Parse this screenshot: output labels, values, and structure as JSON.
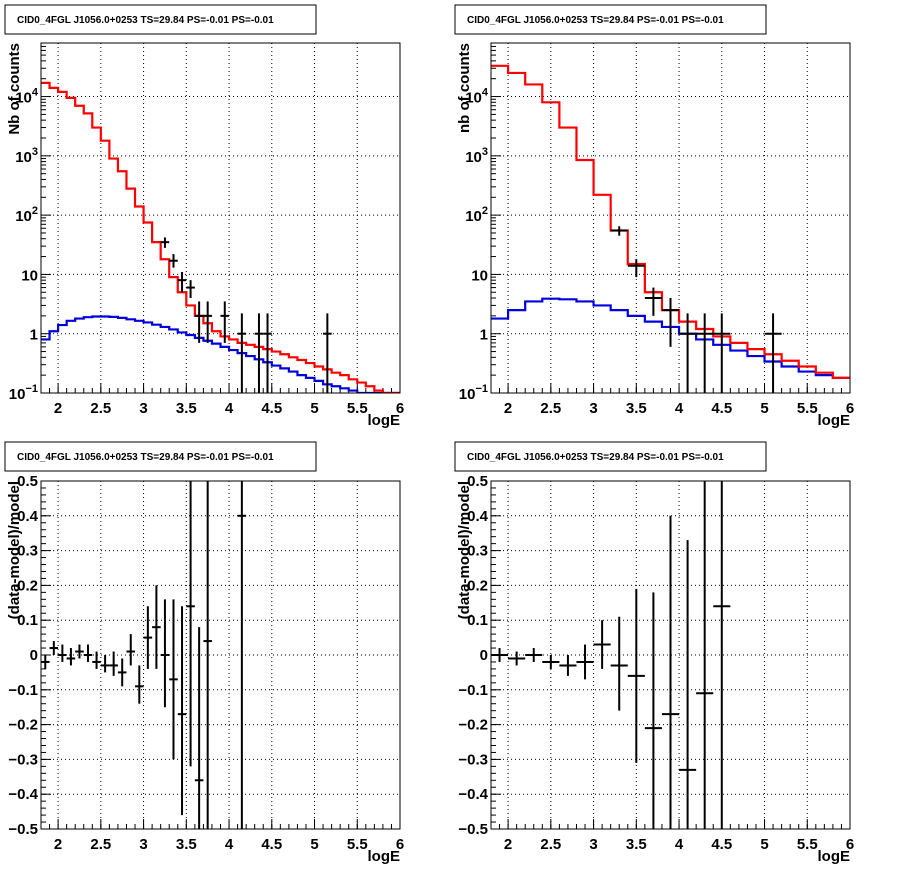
{
  "chart_data": [
    {
      "id": "top-left",
      "type": "line",
      "title": "CID0_4FGL J1056.0+0253 TS=29.84 PS=-0.01 PS=-0.01",
      "xlabel": "logE",
      "ylabel": "Nb of counts",
      "yscale": "log",
      "xlim": [
        1.8,
        6.0
      ],
      "ylim": [
        0.1,
        80000
      ],
      "grid": true,
      "x_ticks": [
        "2",
        "2.5",
        "3",
        "3.5",
        "4",
        "4.5",
        "5",
        "5.5",
        "6"
      ],
      "y_ticks": [
        {
          "v": 0.1,
          "base": "10",
          "exp": "−1"
        },
        {
          "v": 1,
          "base": "1",
          "exp": ""
        },
        {
          "v": 10,
          "base": "10",
          "exp": ""
        },
        {
          "v": 100,
          "base": "10",
          "exp": "2"
        },
        {
          "v": 1000,
          "base": "10",
          "exp": "3"
        },
        {
          "v": 10000,
          "base": "10",
          "exp": "4"
        }
      ],
      "bin_width": 0.1,
      "model_total": {
        "color": "#ff0000",
        "edges": [
          1.8,
          1.9,
          2.0,
          2.1,
          2.2,
          2.3,
          2.4,
          2.5,
          2.6,
          2.7,
          2.8,
          2.9,
          3.0,
          3.1,
          3.2,
          3.3,
          3.4,
          3.5,
          3.6,
          3.7,
          3.8,
          3.9,
          4.0,
          4.1,
          4.2,
          4.3,
          4.4,
          4.5,
          4.6,
          4.7,
          4.8,
          4.9,
          5.0,
          5.1,
          5.2,
          5.3,
          5.4,
          5.5,
          5.6,
          5.7,
          5.8,
          5.9,
          6.0
        ],
        "values": [
          17000,
          14000,
          12000,
          9500,
          7000,
          5200,
          3000,
          1800,
          900,
          550,
          280,
          140,
          75,
          35,
          18,
          9,
          5,
          3,
          2,
          1.5,
          1.1,
          0.9,
          0.8,
          0.7,
          0.65,
          0.6,
          0.55,
          0.5,
          0.45,
          0.4,
          0.36,
          0.32,
          0.28,
          0.25,
          0.22,
          0.2,
          0.17,
          0.15,
          0.13,
          0.11,
          0.1,
          0.09
        ]
      },
      "model_source": {
        "color": "#0000dd",
        "edges": [
          1.8,
          1.9,
          2.0,
          2.1,
          2.2,
          2.3,
          2.4,
          2.5,
          2.6,
          2.7,
          2.8,
          2.9,
          3.0,
          3.1,
          3.2,
          3.3,
          3.4,
          3.5,
          3.6,
          3.7,
          3.8,
          3.9,
          4.0,
          4.1,
          4.2,
          4.3,
          4.4,
          4.5,
          4.6,
          4.7,
          4.8,
          4.9,
          5.0,
          5.1,
          5.2,
          5.3,
          5.4,
          5.5,
          5.6,
          5.7,
          5.8,
          5.9,
          6.0
        ],
        "values": [
          0.8,
          1.1,
          1.4,
          1.65,
          1.8,
          1.9,
          1.95,
          1.95,
          1.92,
          1.85,
          1.75,
          1.65,
          1.55,
          1.42,
          1.3,
          1.18,
          1.05,
          0.95,
          0.85,
          0.76,
          0.68,
          0.6,
          0.53,
          0.47,
          0.42,
          0.37,
          0.33,
          0.29,
          0.26,
          0.23,
          0.2,
          0.18,
          0.16,
          0.14,
          0.13,
          0.12,
          0.11,
          0.1,
          0.1,
          0.1,
          0.1,
          0.09
        ]
      },
      "data_points": [
        {
          "x": 3.25,
          "y": 35,
          "lo": 28,
          "hi": 42
        },
        {
          "x": 3.35,
          "y": 17,
          "lo": 13,
          "hi": 22
        },
        {
          "x": 3.45,
          "y": 8,
          "lo": 5,
          "hi": 11
        },
        {
          "x": 3.55,
          "y": 6,
          "lo": 4,
          "hi": 8
        },
        {
          "x": 3.65,
          "y": 2,
          "lo": 0.7,
          "hi": 3.5
        },
        {
          "x": 3.75,
          "y": 2,
          "lo": 0.7,
          "hi": 3.5
        },
        {
          "x": 3.95,
          "y": 2,
          "lo": 0.7,
          "hi": 3.5
        },
        {
          "x": 4.15,
          "y": 1,
          "lo": 0.1,
          "hi": 2.2
        },
        {
          "x": 4.35,
          "y": 1,
          "lo": 0.1,
          "hi": 2.2
        },
        {
          "x": 4.45,
          "y": 1,
          "lo": 0.1,
          "hi": 2.2
        },
        {
          "x": 5.15,
          "y": 1,
          "lo": 0.1,
          "hi": 2.2
        }
      ]
    },
    {
      "id": "top-right",
      "type": "line",
      "title": "CID0_4FGL J1056.0+0253 TS=29.84 PS=-0.01 PS=-0.01",
      "xlabel": "logE",
      "ylabel": "nb of counts",
      "yscale": "log",
      "xlim": [
        1.8,
        6.0
      ],
      "ylim": [
        0.1,
        80000
      ],
      "grid": true,
      "x_ticks": [
        "2",
        "2.5",
        "3",
        "3.5",
        "4",
        "4.5",
        "5",
        "5.5",
        "6"
      ],
      "y_ticks": [
        {
          "v": 0.1,
          "base": "10",
          "exp": "−1"
        },
        {
          "v": 1,
          "base": "1",
          "exp": ""
        },
        {
          "v": 10,
          "base": "10",
          "exp": ""
        },
        {
          "v": 100,
          "base": "10",
          "exp": "2"
        },
        {
          "v": 1000,
          "base": "10",
          "exp": "3"
        },
        {
          "v": 10000,
          "base": "10",
          "exp": "4"
        }
      ],
      "bin_width": 0.2,
      "model_total": {
        "color": "#ff0000",
        "edges": [
          1.8,
          2.0,
          2.2,
          2.4,
          2.6,
          2.8,
          3.0,
          3.2,
          3.4,
          3.6,
          3.8,
          4.0,
          4.2,
          4.4,
          4.6,
          4.8,
          5.0,
          5.2,
          5.4,
          5.6,
          5.8,
          6.0
        ],
        "values": [
          33000,
          25000,
          16000,
          8000,
          3000,
          850,
          220,
          55,
          15,
          5,
          2.5,
          1.6,
          1.2,
          0.9,
          0.7,
          0.55,
          0.45,
          0.35,
          0.28,
          0.22,
          0.18
        ]
      },
      "model_source": {
        "color": "#0000dd",
        "edges": [
          1.8,
          2.0,
          2.2,
          2.4,
          2.6,
          2.8,
          3.0,
          3.2,
          3.4,
          3.6,
          3.8,
          4.0,
          4.2,
          4.4,
          4.6,
          4.8,
          5.0,
          5.2,
          5.4,
          5.6,
          5.8,
          6.0
        ],
        "values": [
          1.8,
          2.5,
          3.5,
          3.9,
          3.8,
          3.5,
          3.0,
          2.5,
          2.0,
          1.6,
          1.3,
          1.0,
          0.8,
          0.65,
          0.52,
          0.42,
          0.34,
          0.28,
          0.23,
          0.2,
          0.18
        ]
      },
      "data_points": [
        {
          "x": 3.3,
          "y": 55,
          "lo": 45,
          "hi": 65
        },
        {
          "x": 3.5,
          "y": 14,
          "lo": 9,
          "hi": 18
        },
        {
          "x": 3.7,
          "y": 4,
          "lo": 2,
          "hi": 6
        },
        {
          "x": 3.9,
          "y": 2.5,
          "lo": 0.6,
          "hi": 4
        },
        {
          "x": 4.1,
          "y": 1,
          "lo": 0.1,
          "hi": 2.2
        },
        {
          "x": 4.3,
          "y": 1,
          "lo": 0.1,
          "hi": 2.2
        },
        {
          "x": 4.5,
          "y": 1,
          "lo": 0.1,
          "hi": 2.2
        },
        {
          "x": 5.1,
          "y": 1,
          "lo": 0.1,
          "hi": 2.2
        }
      ]
    },
    {
      "id": "bottom-left",
      "type": "scatter",
      "title": "CID0_4FGL J1056.0+0253 TS=29.84 PS=-0.01 PS=-0.01",
      "xlabel": "logE",
      "ylabel": "(data-model)/model",
      "yscale": "linear",
      "xlim": [
        1.8,
        6.0
      ],
      "ylim": [
        -0.5,
        0.5
      ],
      "grid": true,
      "x_ticks": [
        "2",
        "2.5",
        "3",
        "3.5",
        "4",
        "4.5",
        "5",
        "5.5",
        "6"
      ],
      "y_ticks": [
        "-0.5",
        "-0.4",
        "-0.3",
        "-0.2",
        "-0.1",
        "0",
        "0.1",
        "0.2",
        "0.3",
        "0.4",
        "0.5"
      ],
      "bin_width": 0.1,
      "points": [
        {
          "x": 1.85,
          "y": -0.02,
          "lo": -0.04,
          "hi": 0.0
        },
        {
          "x": 1.95,
          "y": 0.02,
          "lo": 0.0,
          "hi": 0.04
        },
        {
          "x": 2.05,
          "y": 0.0,
          "lo": -0.02,
          "hi": 0.03
        },
        {
          "x": 2.15,
          "y": -0.01,
          "lo": -0.03,
          "hi": 0.02
        },
        {
          "x": 2.25,
          "y": 0.01,
          "lo": -0.01,
          "hi": 0.03
        },
        {
          "x": 2.35,
          "y": 0.0,
          "lo": -0.02,
          "hi": 0.03
        },
        {
          "x": 2.45,
          "y": -0.02,
          "lo": -0.04,
          "hi": 0.01
        },
        {
          "x": 2.55,
          "y": -0.03,
          "lo": -0.05,
          "hi": 0.0
        },
        {
          "x": 2.65,
          "y": -0.03,
          "lo": -0.06,
          "hi": 0.01
        },
        {
          "x": 2.75,
          "y": -0.05,
          "lo": -0.09,
          "hi": -0.01
        },
        {
          "x": 2.85,
          "y": 0.01,
          "lo": -0.03,
          "hi": 0.06
        },
        {
          "x": 2.95,
          "y": -0.09,
          "lo": -0.14,
          "hi": -0.03
        },
        {
          "x": 3.05,
          "y": 0.05,
          "lo": -0.04,
          "hi": 0.14
        },
        {
          "x": 3.15,
          "y": 0.08,
          "lo": -0.04,
          "hi": 0.2
        },
        {
          "x": 3.25,
          "y": 0.0,
          "lo": -0.15,
          "hi": 0.16
        },
        {
          "x": 3.35,
          "y": -0.07,
          "lo": -0.3,
          "hi": 0.16
        },
        {
          "x": 3.45,
          "y": -0.17,
          "lo": -0.46,
          "hi": 0.14
        },
        {
          "x": 3.55,
          "y": 0.14,
          "lo": -0.32,
          "hi": 0.5
        },
        {
          "x": 3.65,
          "y": -0.36,
          "lo": -0.5,
          "hi": 0.08
        },
        {
          "x": 3.75,
          "y": 0.04,
          "lo": -0.5,
          "hi": 0.5
        },
        {
          "x": 4.15,
          "y": 0.4,
          "lo": -0.5,
          "hi": 0.5
        }
      ]
    },
    {
      "id": "bottom-right",
      "type": "scatter",
      "title": "CID0_4FGL J1056.0+0253 TS=29.84 PS=-0.01 PS=-0.01",
      "xlabel": "logE",
      "ylabel": "(data-model)/model",
      "yscale": "linear",
      "xlim": [
        1.8,
        6.0
      ],
      "ylim": [
        -0.5,
        0.5
      ],
      "grid": true,
      "x_ticks": [
        "2",
        "2.5",
        "3",
        "3.5",
        "4",
        "4.5",
        "5",
        "5.5",
        "6"
      ],
      "y_ticks": [
        "-0.5",
        "-0.4",
        "-0.3",
        "-0.2",
        "-0.1",
        "0",
        "0.1",
        "0.2",
        "0.3",
        "0.4",
        "0.5"
      ],
      "bin_width": 0.2,
      "points": [
        {
          "x": 1.9,
          "y": 0.0,
          "lo": -0.02,
          "hi": 0.02
        },
        {
          "x": 2.1,
          "y": -0.01,
          "lo": -0.03,
          "hi": 0.01
        },
        {
          "x": 2.3,
          "y": 0.0,
          "lo": -0.02,
          "hi": 0.02
        },
        {
          "x": 2.5,
          "y": -0.02,
          "lo": -0.04,
          "hi": 0.0
        },
        {
          "x": 2.7,
          "y": -0.03,
          "lo": -0.06,
          "hi": 0.0
        },
        {
          "x": 2.9,
          "y": -0.02,
          "lo": -0.07,
          "hi": 0.03
        },
        {
          "x": 3.1,
          "y": 0.03,
          "lo": -0.04,
          "hi": 0.1
        },
        {
          "x": 3.3,
          "y": -0.03,
          "lo": -0.16,
          "hi": 0.11
        },
        {
          "x": 3.5,
          "y": -0.06,
          "lo": -0.31,
          "hi": 0.19
        },
        {
          "x": 3.7,
          "y": -0.21,
          "lo": -0.5,
          "hi": 0.18
        },
        {
          "x": 3.9,
          "y": -0.17,
          "lo": -0.5,
          "hi": 0.4
        },
        {
          "x": 4.1,
          "y": -0.33,
          "lo": -0.5,
          "hi": 0.33
        },
        {
          "x": 4.3,
          "y": -0.11,
          "lo": -0.5,
          "hi": 0.5
        },
        {
          "x": 4.5,
          "y": 0.14,
          "lo": -0.5,
          "hi": 0.5
        }
      ]
    }
  ]
}
